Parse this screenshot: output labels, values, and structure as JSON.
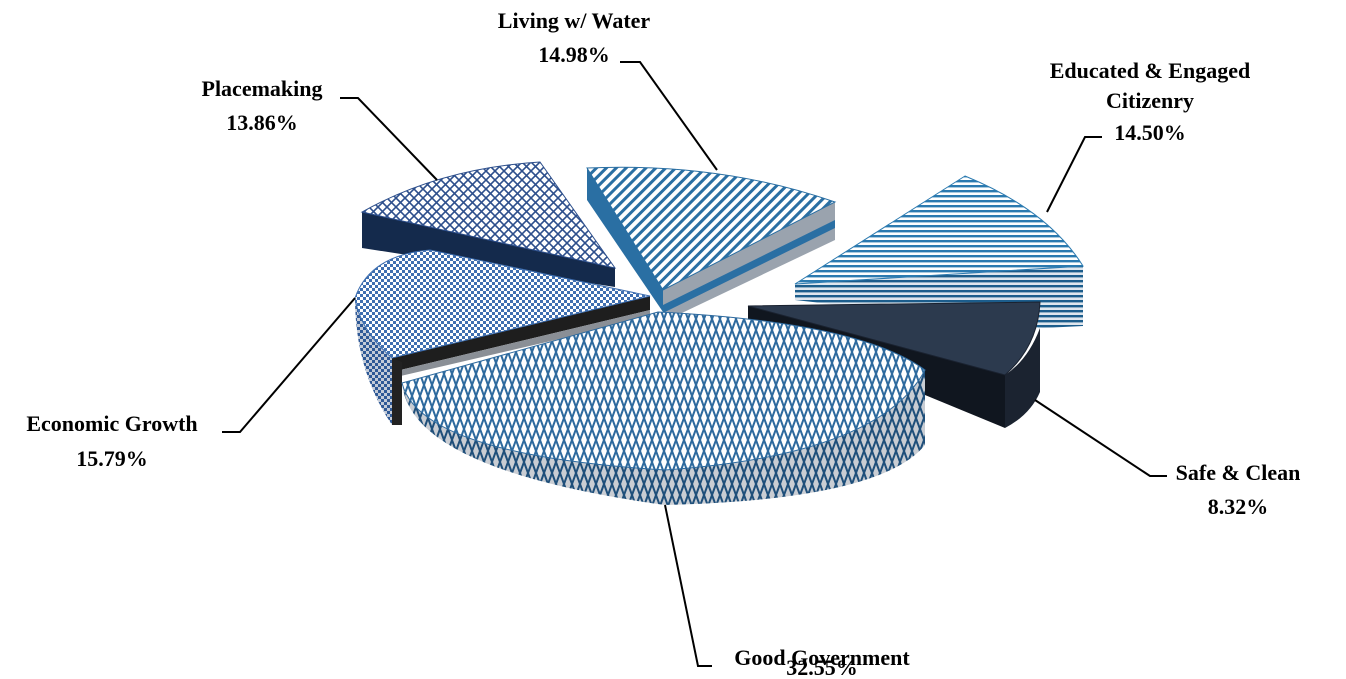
{
  "chart_data": {
    "type": "pie",
    "style": "3d-exploded",
    "title": "",
    "slices": [
      {
        "name": "Good Government",
        "value": 32.55,
        "label": "32.55%",
        "pattern": "zigzag",
        "color": "#2e6a9e"
      },
      {
        "name": "Economic Growth",
        "value": 15.79,
        "label": "15.79%",
        "pattern": "checker",
        "color": "#3f6fb0"
      },
      {
        "name": "Placemaking",
        "value": 13.86,
        "label": "13.86%",
        "pattern": "crosshatch",
        "color": "#2d4f8c"
      },
      {
        "name": "Living w/ Water",
        "value": 14.98,
        "label": "14.98%",
        "pattern": "diagonal",
        "color": "#2a6fa3"
      },
      {
        "name": "Educated & Engaged Citizenry",
        "value": 14.5,
        "label": "14.50%",
        "pattern": "horizontal",
        "color": "#2b7ab0"
      },
      {
        "name": "Safe & Clean",
        "value": 8.32,
        "label": "8.32%",
        "pattern": "solid",
        "color": "#2c3a4e"
      }
    ]
  }
}
